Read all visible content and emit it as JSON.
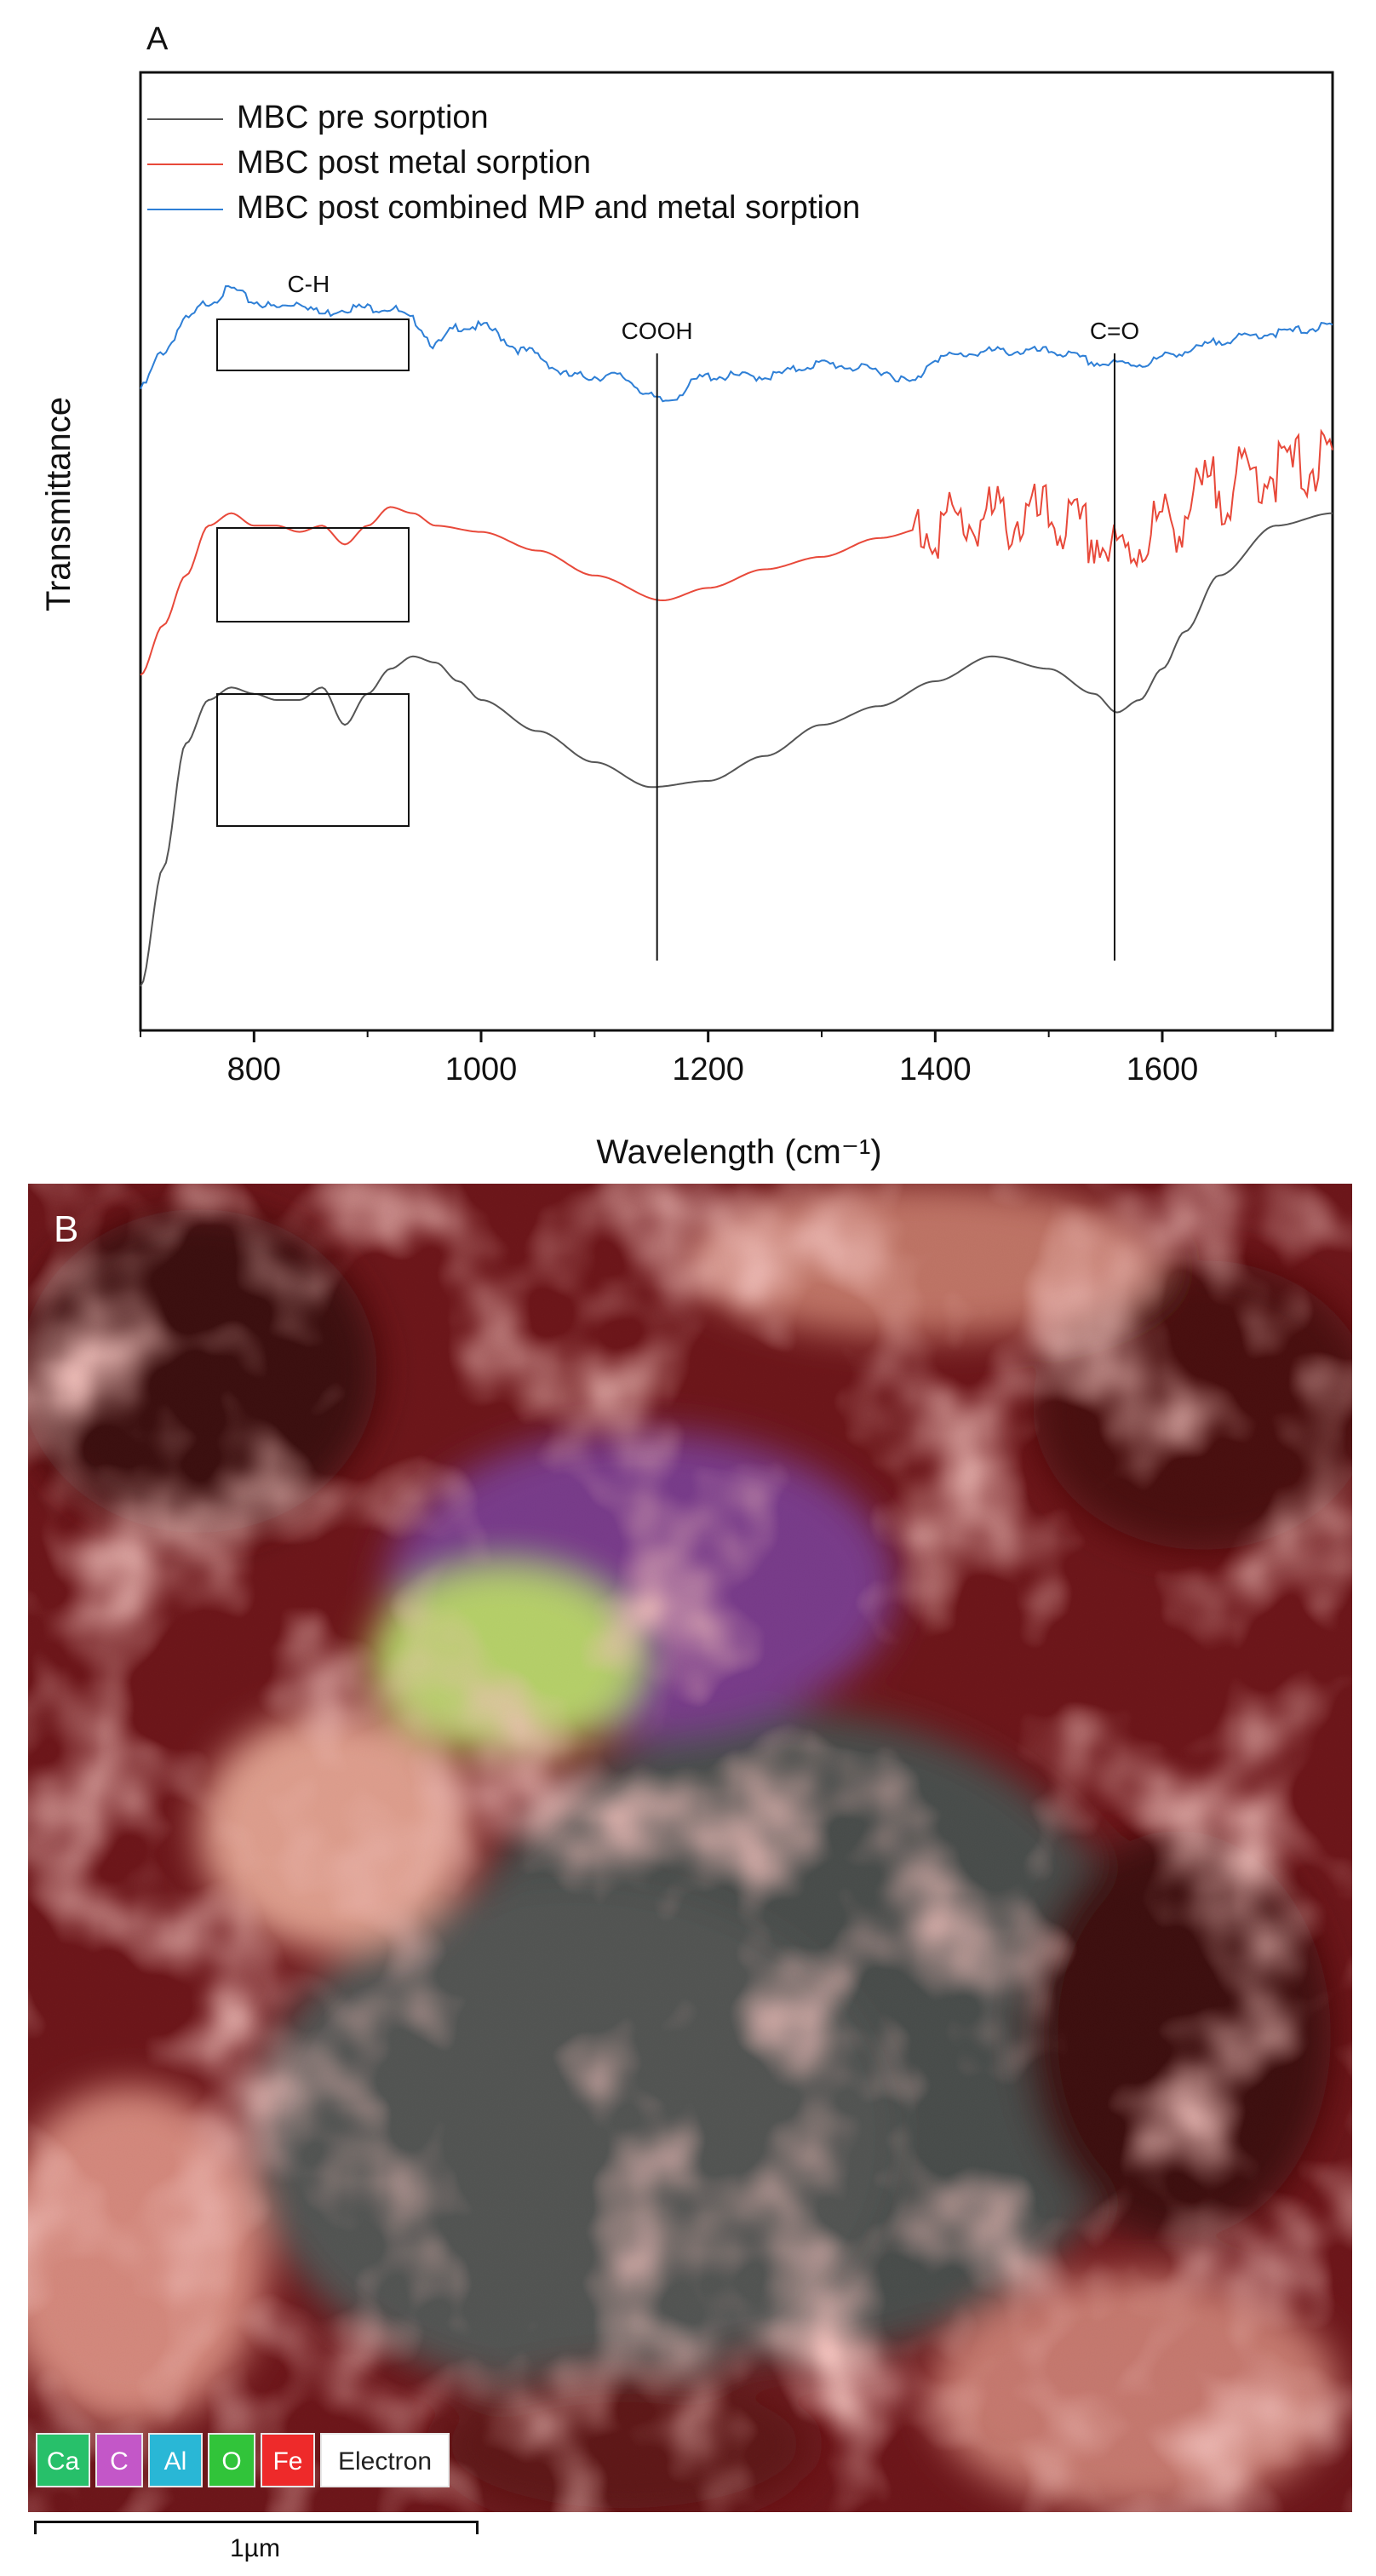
{
  "panel_a": {
    "label": "A"
  },
  "chart_data": {
    "type": "line",
    "xlabel": "Wavelength (cm⁻¹)",
    "ylabel": "Transmittance",
    "xlim": [
      700,
      1750
    ],
    "ylim": [
      0,
      100
    ],
    "xticks": [
      "800",
      "1000",
      "1200",
      "1400",
      "1600"
    ],
    "legend_position": "top-left",
    "grid": false,
    "y_ticks_shown": false,
    "series": [
      {
        "name": "MBC pre sorption",
        "color": "#555555",
        "x": [
          700,
          720,
          740,
          760,
          780,
          800,
          820,
          840,
          860,
          880,
          900,
          920,
          940,
          960,
          980,
          1000,
          1050,
          1100,
          1150,
          1200,
          1250,
          1300,
          1350,
          1400,
          1450,
          1500,
          1540,
          1560,
          1580,
          1600,
          1620,
          1650,
          1700,
          1750
        ],
        "y": [
          6,
          25,
          45,
          52,
          54,
          53,
          52,
          52,
          54,
          48,
          53,
          57,
          59,
          58,
          55,
          52,
          47,
          42,
          38,
          39,
          43,
          48,
          51,
          55,
          59,
          57,
          53,
          50,
          52,
          57,
          63,
          72,
          80,
          82
        ]
      },
      {
        "name": "MBC post metal sorption",
        "color": "#e8493a",
        "x": [
          700,
          720,
          740,
          760,
          780,
          800,
          820,
          840,
          860,
          880,
          900,
          920,
          940,
          960,
          1000,
          1050,
          1100,
          1160,
          1200,
          1250,
          1300,
          1350,
          1400,
          1450,
          1500,
          1540,
          1560,
          1600,
          1650,
          1700,
          1750
        ],
        "y": [
          56,
          64,
          72,
          80,
          82,
          80,
          80,
          79,
          80,
          77,
          80,
          83,
          82,
          80,
          79,
          76,
          72,
          68,
          70,
          73,
          75,
          78,
          80,
          81,
          81,
          78,
          75,
          80,
          86,
          89,
          90
        ]
      },
      {
        "name": "MBC post combined MP and metal sorption",
        "color": "#2e7fd6",
        "x": [
          700,
          720,
          740,
          760,
          780,
          800,
          820,
          840,
          860,
          880,
          900,
          920,
          940,
          960,
          980,
          1000,
          1040,
          1080,
          1120,
          1160,
          1200,
          1250,
          1300,
          1350,
          1380,
          1400,
          1450,
          1500,
          1550,
          1580,
          1620,
          1660,
          1700,
          1750
        ],
        "y": [
          102,
          108,
          113,
          116,
          118,
          116,
          115,
          116,
          114,
          115,
          115,
          115,
          113,
          109,
          112,
          112,
          108,
          104,
          104,
          100,
          104,
          104,
          106,
          105,
          103,
          107,
          108,
          108,
          106,
          106,
          108,
          110,
          111,
          112
        ]
      }
    ],
    "annotations": [
      {
        "text": "C-H",
        "x": 848
      },
      {
        "text": "COOH",
        "x": 1155
      },
      {
        "text": "C=O",
        "x": 1558
      }
    ]
  },
  "panel_b": {
    "label": "B",
    "legend_chips": [
      {
        "text": "Ca",
        "color": "#27c06a"
      },
      {
        "text": "C",
        "color": "#c357c8"
      },
      {
        "text": "Al",
        "color": "#29b7d6"
      },
      {
        "text": "O",
        "color": "#31c43a"
      },
      {
        "text": "Fe",
        "color": "#ee2a2a"
      },
      {
        "text": "Electron",
        "color": "#ffffff"
      }
    ],
    "scale_bar_label": "1µm"
  }
}
